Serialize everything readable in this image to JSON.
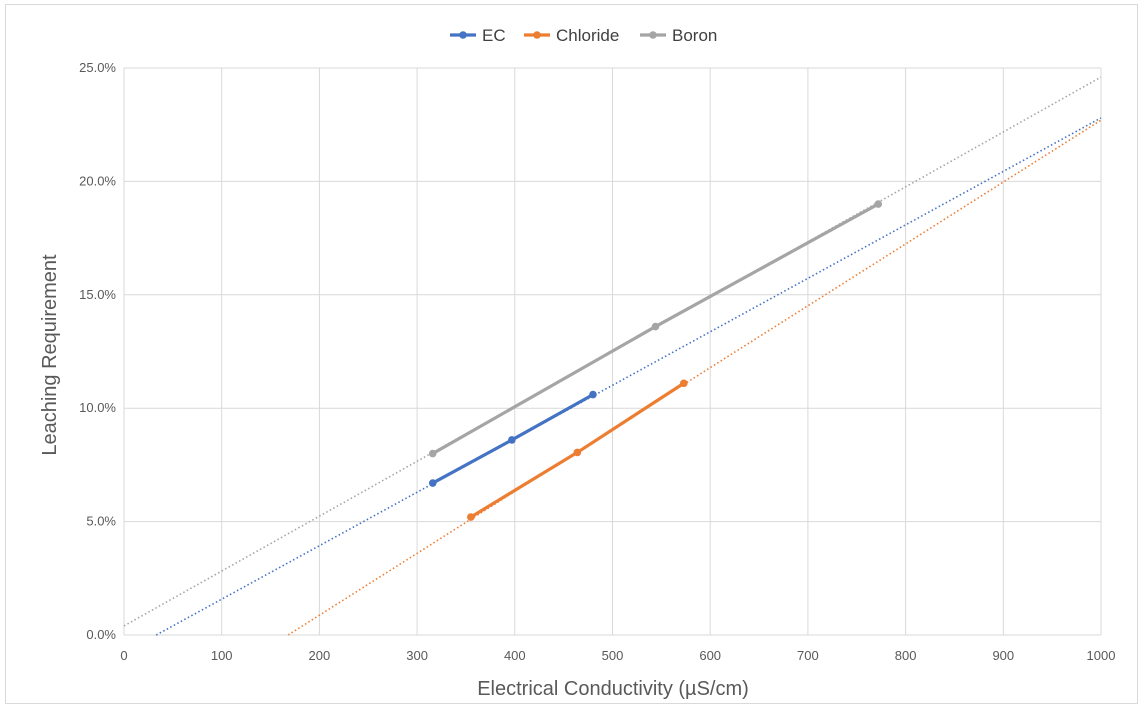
{
  "chart_data": {
    "type": "line",
    "title": "",
    "xlabel": "Electrical Conductivity (µS/cm)",
    "ylabel": "Leaching Requirement",
    "xlim": [
      0,
      1000
    ],
    "ylim": [
      0,
      25
    ],
    "x_ticks": [
      0,
      100,
      200,
      300,
      400,
      500,
      600,
      700,
      800,
      900,
      1000
    ],
    "x_tick_labels": [
      "0",
      "100",
      "200",
      "300",
      "400",
      "500",
      "600",
      "700",
      "800",
      "900",
      "1000"
    ],
    "y_ticks": [
      0,
      5,
      10,
      15,
      20,
      25
    ],
    "y_tick_labels": [
      "0.0%",
      "5.0%",
      "10.0%",
      "15.0%",
      "20.0%",
      "25.0%"
    ],
    "grid": true,
    "legend_position": "top-center",
    "series": [
      {
        "name": "EC",
        "color": "#4472C4",
        "x": [
          316,
          397,
          480
        ],
        "y": [
          6.7,
          8.6,
          10.6
        ],
        "trendline": {
          "x": [
            33,
            1000
          ],
          "y": [
            0,
            22.8
          ]
        }
      },
      {
        "name": "Chloride",
        "color": "#ED7D31",
        "x": [
          355,
          464,
          573
        ],
        "y": [
          5.2,
          8.05,
          11.1
        ],
        "trendline": {
          "x": [
            168,
            1000
          ],
          "y": [
            0,
            22.7
          ]
        }
      },
      {
        "name": "Boron",
        "color": "#A5A5A5",
        "x": [
          316,
          544,
          772
        ],
        "y": [
          8.0,
          13.6,
          19.0
        ],
        "trendline": {
          "x": [
            0,
            1000
          ],
          "y": [
            0.4,
            24.6
          ]
        }
      }
    ]
  }
}
